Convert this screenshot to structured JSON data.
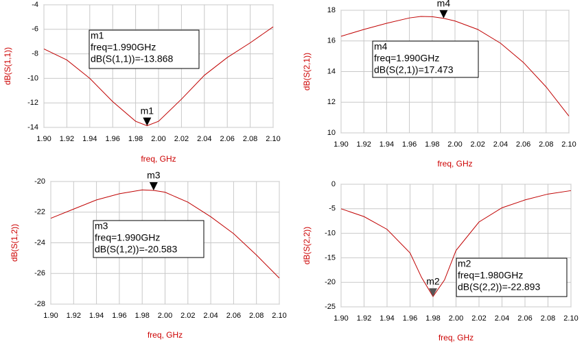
{
  "chart_data": [
    {
      "type": "line",
      "y_label": "dB(S(1,1))",
      "x_label": "freq, GHz",
      "x": [
        1.9,
        1.92,
        1.94,
        1.96,
        1.98,
        1.99,
        2.0,
        2.02,
        2.04,
        2.06,
        2.08,
        2.1
      ],
      "series": [
        {
          "color": "#c00000",
          "values": [
            -7.6,
            -8.5,
            -10.0,
            -11.9,
            -13.5,
            -13.868,
            -13.5,
            -11.7,
            -9.75,
            -8.3,
            -7.1,
            -5.8
          ]
        }
      ],
      "xlim": [
        1.9,
        2.1
      ],
      "ylim": [
        -14,
        -4
      ],
      "xticks": [
        {
          "value": 1.9,
          "label": "1.90"
        },
        {
          "value": 1.92,
          "label": "1.92"
        },
        {
          "value": 1.94,
          "label": "1.94"
        },
        {
          "value": 1.96,
          "label": "1.96"
        },
        {
          "value": 1.98,
          "label": "1.98"
        },
        {
          "value": 2.0,
          "label": "2.00"
        },
        {
          "value": 2.02,
          "label": "2.02"
        },
        {
          "value": 2.04,
          "label": "2.04"
        },
        {
          "value": 2.06,
          "label": "2.06"
        },
        {
          "value": 2.08,
          "label": "2.08"
        },
        {
          "value": 2.1,
          "label": "2.10"
        }
      ],
      "yticks": [
        -14,
        -12,
        -10,
        -8,
        -6,
        -4
      ],
      "grid": true,
      "marker": {
        "name": "m1",
        "x": 1.99,
        "y": -13.868,
        "lines": [
          "m1",
          "freq=1.990GHz",
          "dB(S(1,1))=-13.868"
        ]
      }
    },
    {
      "type": "line",
      "y_label": "dB(S(2,1))",
      "x_label": "freq, GHz",
      "x": [
        1.9,
        1.92,
        1.94,
        1.96,
        1.97,
        1.98,
        1.99,
        2.0,
        2.02,
        2.04,
        2.06,
        2.08,
        2.1
      ],
      "series": [
        {
          "color": "#c00000",
          "values": [
            16.3,
            16.75,
            17.15,
            17.5,
            17.6,
            17.58,
            17.473,
            17.3,
            16.75,
            15.85,
            14.6,
            13.0,
            11.1
          ]
        }
      ],
      "xlim": [
        1.9,
        2.1
      ],
      "ylim": [
        10,
        18
      ],
      "xticks": [
        {
          "value": 1.9,
          "label": "1.90"
        },
        {
          "value": 1.92,
          "label": "1.92"
        },
        {
          "value": 1.94,
          "label": "1.94"
        },
        {
          "value": 1.96,
          "label": "1.96"
        },
        {
          "value": 1.98,
          "label": "1.98"
        },
        {
          "value": 2.0,
          "label": "2.00"
        },
        {
          "value": 2.02,
          "label": "2.02"
        },
        {
          "value": 2.04,
          "label": "2.04"
        },
        {
          "value": 2.06,
          "label": "2.06"
        },
        {
          "value": 2.08,
          "label": "2.08"
        },
        {
          "value": 2.1,
          "label": "2.10"
        }
      ],
      "yticks": [
        10,
        12,
        14,
        16,
        18
      ],
      "grid": true,
      "marker": {
        "name": "m4",
        "x": 1.99,
        "y": 17.473,
        "lines": [
          "m4",
          "freq=1.990GHz",
          "dB(S(2,1))=17.473"
        ]
      }
    },
    {
      "type": "line",
      "y_label": "dB(S(1,2))",
      "x_label": "freq, GHz",
      "x": [
        1.9,
        1.92,
        1.94,
        1.96,
        1.98,
        1.99,
        2.0,
        2.02,
        2.04,
        2.06,
        2.08,
        2.1
      ],
      "series": [
        {
          "color": "#c00000",
          "values": [
            -22.4,
            -21.8,
            -21.2,
            -20.8,
            -20.55,
            -20.583,
            -20.7,
            -21.35,
            -22.3,
            -23.4,
            -24.8,
            -26.3
          ]
        }
      ],
      "xlim": [
        1.9,
        2.1
      ],
      "ylim": [
        -28,
        -20
      ],
      "xticks": [
        {
          "value": 1.9,
          "label": "1.90"
        },
        {
          "value": 1.92,
          "label": "1.92"
        },
        {
          "value": 1.94,
          "label": "1.94"
        },
        {
          "value": 1.96,
          "label": "1.96"
        },
        {
          "value": 1.98,
          "label": "1.98"
        },
        {
          "value": 2.0,
          "label": "2.00"
        },
        {
          "value": 2.02,
          "label": "2.02"
        },
        {
          "value": 2.04,
          "label": "2.04"
        },
        {
          "value": 2.06,
          "label": "2.06"
        },
        {
          "value": 2.08,
          "label": "2.08"
        },
        {
          "value": 2.1,
          "label": "2.10"
        }
      ],
      "yticks": [
        -28,
        -26,
        -24,
        -22,
        -20
      ],
      "grid": true,
      "marker": {
        "name": "m3",
        "x": 1.99,
        "y": -20.583,
        "lines": [
          "m3",
          "freq=1.990GHz",
          "dB(S(1,2))=-20.583"
        ]
      }
    },
    {
      "type": "line",
      "y_label": "dB(S(2,2))",
      "x_label": "freq, GHz",
      "x": [
        1.9,
        1.92,
        1.94,
        1.96,
        1.97,
        1.98,
        1.99,
        2.0,
        2.02,
        2.04,
        2.06,
        2.08,
        2.1
      ],
      "series": [
        {
          "color": "#c00000",
          "values": [
            -5.0,
            -6.6,
            -9.2,
            -14.0,
            -19.0,
            -22.893,
            -19.5,
            -13.5,
            -7.7,
            -4.8,
            -3.2,
            -2.0,
            -1.3
          ]
        }
      ],
      "xlim": [
        1.9,
        2.1
      ],
      "ylim": [
        -25,
        0
      ],
      "xticks": [
        {
          "value": 1.9,
          "label": "1.90"
        },
        {
          "value": 1.92,
          "label": "1.92"
        },
        {
          "value": 1.94,
          "label": "1.94"
        },
        {
          "value": 1.96,
          "label": "1.96"
        },
        {
          "value": 1.98,
          "label": "1.98"
        },
        {
          "value": 2.0,
          "label": "2.00"
        },
        {
          "value": 2.02,
          "label": "2.02"
        },
        {
          "value": 2.04,
          "label": "2.04"
        },
        {
          "value": 2.06,
          "label": "2.06"
        },
        {
          "value": 2.08,
          "label": "2.08"
        },
        {
          "value": 2.1,
          "label": "2.10"
        }
      ],
      "yticks": [
        -25,
        -20,
        -15,
        -10,
        -5,
        0
      ],
      "grid": true,
      "marker": {
        "name": "m2",
        "x": 1.98,
        "y": -22.893,
        "lines": [
          "m2",
          "freq=1.980GHz",
          "dB(S(2,2))=-22.893"
        ]
      }
    }
  ]
}
